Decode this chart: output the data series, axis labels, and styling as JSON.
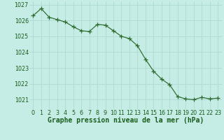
{
  "x": [
    0,
    1,
    2,
    3,
    4,
    5,
    6,
    7,
    8,
    9,
    10,
    11,
    12,
    13,
    14,
    15,
    16,
    17,
    18,
    19,
    20,
    21,
    22,
    23
  ],
  "y": [
    1026.3,
    1026.75,
    1026.2,
    1026.05,
    1025.9,
    1025.6,
    1025.35,
    1025.3,
    1025.75,
    1025.7,
    1025.35,
    1025.0,
    1024.85,
    1024.4,
    1023.55,
    1022.8,
    1022.3,
    1021.95,
    1021.2,
    1021.05,
    1021.0,
    1021.15,
    1021.05,
    1021.1
  ],
  "line_color": "#2d6a2d",
  "marker_color": "#2d6a2d",
  "bg_color": "#c5ede6",
  "grid_color": "#a8d5cc",
  "xlabel": "Graphe pression niveau de la mer (hPa)",
  "xlabel_color": "#1a5c1a",
  "tick_color": "#1a5c1a",
  "ylim": [
    1020.4,
    1027.2
  ],
  "yticks": [
    1021,
    1022,
    1023,
    1024,
    1025,
    1026,
    1027
  ],
  "xticks": [
    0,
    1,
    2,
    3,
    4,
    5,
    6,
    7,
    8,
    9,
    10,
    11,
    12,
    13,
    14,
    15,
    16,
    17,
    18,
    19,
    20,
    21,
    22,
    23
  ],
  "tick_fontsize": 5.8,
  "xlabel_fontsize": 7.0,
  "marker_size": 2.2,
  "line_width": 0.85
}
